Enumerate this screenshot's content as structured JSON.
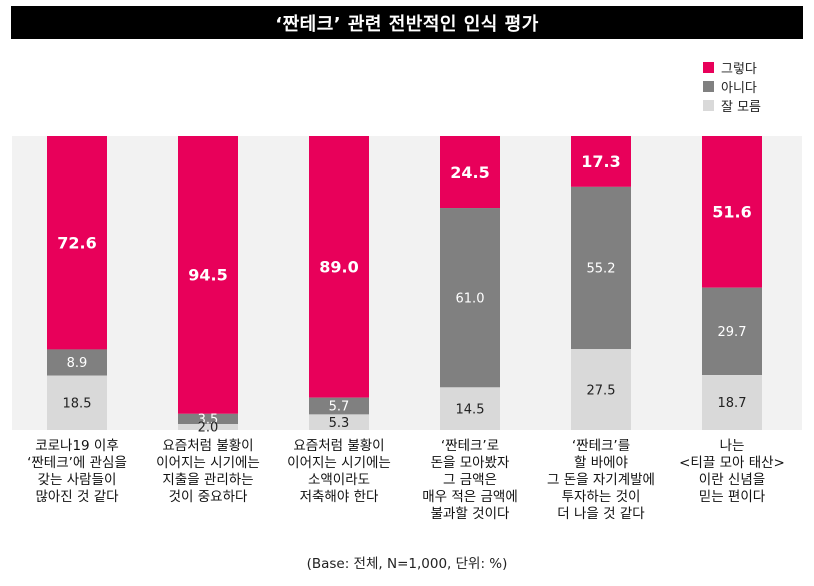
{
  "chart_data": {
    "type": "bar",
    "stacked": true,
    "percent": true,
    "title": "‘짠테크’ 관련 전반적인 인식 평가",
    "categories": [
      [
        "코로나19 이후",
        "‘짠테크’에 관심을",
        "갖는 사람들이",
        "많아진 것 같다"
      ],
      [
        "요즘처럼 불황이",
        "이어지는 시기에는",
        "지출을 관리하는",
        "것이 중요하다"
      ],
      [
        "요즘처럼 불황이",
        "이어지는 시기에는",
        "소액이라도",
        "저축해야 한다"
      ],
      [
        "‘짠테크’로",
        "돈을 모아봤자",
        "그 금액은",
        "매우 적은 금액에",
        "불과할 것이다"
      ],
      [
        "‘짠테크’를",
        "할 바에야",
        "그 돈을 자기계발에",
        "투자하는 것이",
        "더 나을 것 같다"
      ],
      [
        "나는",
        "<티끌 모아 태산>",
        "이란 신념을",
        "믿는 편이다"
      ]
    ],
    "series": [
      {
        "name": "그렇다",
        "color": "#e8005a",
        "label_color": "#ffffff",
        "values": [
          72.6,
          94.5,
          89.0,
          24.5,
          17.3,
          51.6
        ]
      },
      {
        "name": "아니다",
        "color": "#808080",
        "label_color": "#ffffff",
        "values": [
          8.9,
          3.5,
          5.7,
          61.0,
          55.2,
          29.7
        ]
      },
      {
        "name": "잘 모름",
        "color": "#d9d9d9",
        "label_color": "#222222",
        "values": [
          18.5,
          2.0,
          5.3,
          14.5,
          27.5,
          18.7
        ]
      }
    ],
    "ylim": [
      0,
      100
    ],
    "legend_position": "top-right",
    "background_band_color": "#f2f2f2",
    "footnote": "(Base: 전체, N=1,000, 단위: %)"
  }
}
